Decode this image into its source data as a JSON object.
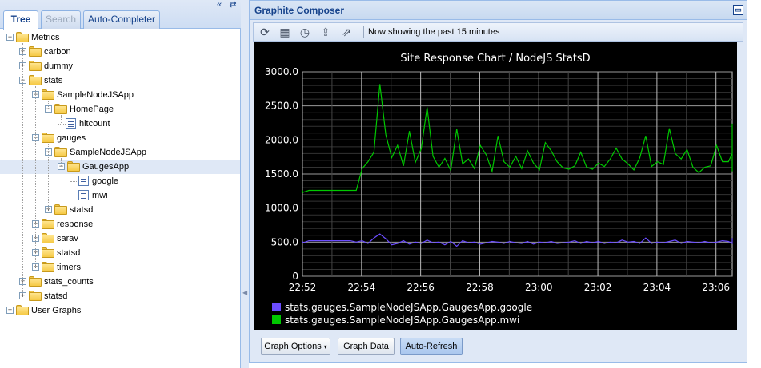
{
  "left_panel": {
    "tabs": [
      {
        "label": "Tree",
        "active": true
      },
      {
        "label": "Search",
        "active": false
      },
      {
        "label": "Auto-Completer",
        "active": false
      }
    ],
    "tree": [
      {
        "label": "Metrics",
        "kind": "folder",
        "state": "expanded",
        "depth": 0
      },
      {
        "label": "carbon",
        "kind": "folder",
        "state": "collapsed",
        "depth": 1
      },
      {
        "label": "dummy",
        "kind": "folder",
        "state": "collapsed",
        "depth": 1
      },
      {
        "label": "stats",
        "kind": "folder",
        "state": "expanded",
        "depth": 1
      },
      {
        "label": "SampleNodeJSApp",
        "kind": "folder",
        "state": "expanded",
        "depth": 2
      },
      {
        "label": "HomePage",
        "kind": "folder",
        "state": "expanded",
        "depth": 3
      },
      {
        "label": "hitcount",
        "kind": "leaf",
        "state": "",
        "depth": 4
      },
      {
        "label": "gauges",
        "kind": "folder",
        "state": "expanded",
        "depth": 2
      },
      {
        "label": "SampleNodeJSApp",
        "kind": "folder",
        "state": "expanded",
        "depth": 3
      },
      {
        "label": "GaugesApp",
        "kind": "folder",
        "state": "expanded",
        "depth": 4,
        "selected": true
      },
      {
        "label": "google",
        "kind": "leaf",
        "state": "",
        "depth": 5
      },
      {
        "label": "mwi",
        "kind": "leaf",
        "state": "",
        "depth": 5
      },
      {
        "label": "statsd",
        "kind": "folder",
        "state": "collapsed",
        "depth": 3
      },
      {
        "label": "response",
        "kind": "folder",
        "state": "collapsed",
        "depth": 2
      },
      {
        "label": "sarav",
        "kind": "folder",
        "state": "collapsed",
        "depth": 2
      },
      {
        "label": "statsd",
        "kind": "folder",
        "state": "collapsed",
        "depth": 2
      },
      {
        "label": "timers",
        "kind": "folder",
        "state": "collapsed",
        "depth": 2
      },
      {
        "label": "stats_counts",
        "kind": "folder",
        "state": "collapsed",
        "depth": 1
      },
      {
        "label": "statsd",
        "kind": "folder",
        "state": "collapsed",
        "depth": 1
      },
      {
        "label": "User Graphs",
        "kind": "folder",
        "state": "collapsed",
        "depth": 0
      }
    ]
  },
  "composer": {
    "title": "Graphite Composer",
    "status_text": "Now showing the past 15 minutes",
    "toolbar_icons": [
      "refresh-icon",
      "calendar-icon",
      "clock-icon",
      "upload-icon",
      "share-icon"
    ],
    "buttons": {
      "graph_options": "Graph Options",
      "graph_data": "Graph Data",
      "auto_refresh": "Auto-Refresh"
    }
  },
  "colors": {
    "google": "#6b4cff",
    "mwi": "#00c800",
    "panel_header_text": "#15428b"
  },
  "chart_data": {
    "type": "line",
    "title": "Site Response Chart / NodeJS StatsD",
    "xlabel": "",
    "ylabel": "",
    "ylim": [
      0,
      3000
    ],
    "yticks": [
      "3000.0",
      "2500.0",
      "2000.0",
      "1500.0",
      "1000.0",
      "500.0",
      "0"
    ],
    "xticks": [
      "22:52",
      "22:54",
      "22:56",
      "22:58",
      "23:00",
      "23:02",
      "23:04",
      "23:06"
    ],
    "x_start_minutes": -0.18,
    "x_step_minutes": 0.2,
    "series": [
      {
        "name": "stats.gauges.SampleNodeJSApp.GaugesApp.google",
        "values": [
          510,
          490,
          520,
          520,
          520,
          520,
          520,
          520,
          520,
          520,
          500,
          520,
          480,
          560,
          620,
          550,
          460,
          480,
          520,
          470,
          500,
          480,
          530,
          490,
          500,
          460,
          510,
          440,
          520,
          490,
          500,
          470,
          490,
          510,
          500,
          480,
          510,
          490,
          480,
          510,
          470,
          500,
          490,
          510,
          480,
          490,
          500,
          520,
          480,
          510,
          490,
          510,
          480,
          500,
          490,
          530,
          500,
          510,
          480,
          560,
          480,
          500,
          490,
          510,
          530,
          480,
          510,
          500,
          490,
          510,
          490,
          500,
          520,
          510,
          480,
          500,
          510,
          500,
          490,
          530,
          480,
          500,
          510,
          490,
          540,
          510,
          480,
          560,
          500,
          490,
          500,
          510,
          480,
          520,
          510
        ]
      },
      {
        "name": "stats.gauges.SampleNodeJSApp.GaugesApp.mwi",
        "values": [
          1260,
          1230,
          1260,
          1260,
          1260,
          1260,
          1260,
          1260,
          1260,
          1260,
          1260,
          1580,
          1680,
          1820,
          2820,
          2080,
          1740,
          1920,
          1620,
          2130,
          1670,
          1870,
          2480,
          1760,
          1600,
          1730,
          1550,
          2160,
          1650,
          1720,
          1580,
          1920,
          1780,
          1540,
          2060,
          1680,
          1600,
          1760,
          1580,
          1840,
          1660,
          1560,
          1960,
          1840,
          1680,
          1590,
          1570,
          1620,
          1820,
          1600,
          1570,
          1660,
          1610,
          1720,
          1880,
          1720,
          1650,
          1560,
          1740,
          2060,
          1610,
          1680,
          1640,
          2170,
          1800,
          1720,
          1860,
          1600,
          1520,
          1600,
          1620,
          1920,
          1680,
          1680,
          1800,
          1840,
          1660,
          1600,
          1650,
          2130,
          1780,
          1740,
          1820,
          1540,
          1650,
          1580,
          1900,
          1720,
          1620,
          1600,
          1740,
          1600,
          1700,
          1580,
          2240,
          1560
        ]
      }
    ]
  }
}
